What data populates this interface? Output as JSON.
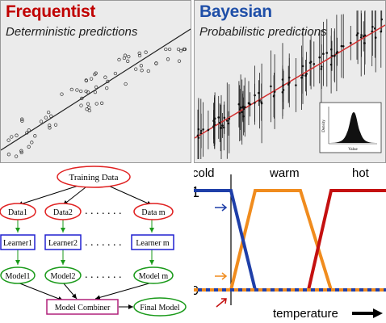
{
  "frequentist": {
    "title": "Frequentist",
    "subtitle": "Deterministic predictions"
  },
  "bayesian": {
    "title": "Bayesian",
    "subtitle": "Probabilistic predictions",
    "inset": {
      "xlabel": "Value",
      "ylabel": "Density"
    }
  },
  "ensemble": {
    "training": "Training Data",
    "data": [
      "Data1",
      "Data2",
      "Data m"
    ],
    "learners": [
      "Learner1",
      "Learner2",
      "Learner m"
    ],
    "models": [
      "Model1",
      "Model2",
      "Model m"
    ],
    "combiner": "Model Combiner",
    "final": "Final Model",
    "colors": {
      "data": "#e02020",
      "learner": "#2020d0",
      "model": "#1a9a1a",
      "combiner": "#b0207a"
    }
  },
  "fuzzy": {
    "categories": [
      "cold",
      "warm",
      "hot"
    ],
    "y_top": "1",
    "y_bottom": "0",
    "axis_label": "temperature",
    "colors": {
      "cold": "#1f3fa8",
      "warm": "#f08c1e",
      "hot": "#c41010"
    }
  }
}
